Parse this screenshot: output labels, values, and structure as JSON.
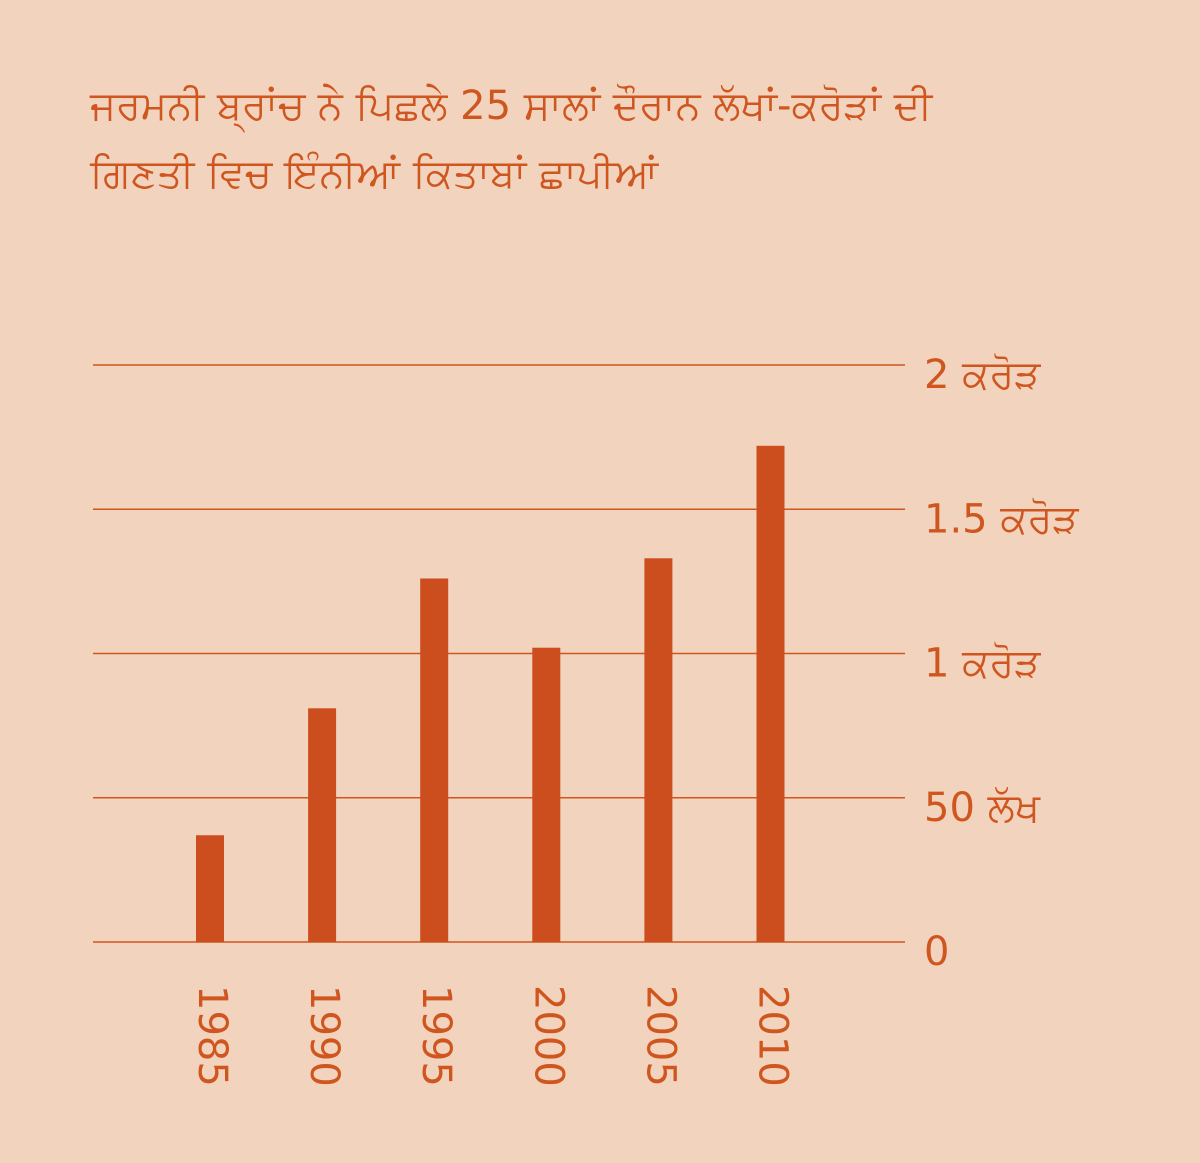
{
  "chart_data": {
    "type": "bar",
    "title": "ਜਰਮਨੀ ਬ੍ਰਾਂਚ ਨੇ ਪਿਛਲੇ 25 ਸਾਲਾਂ ਦੌਰਾਨ ਲੱਖਾਂ-ਕਰੋੜਾਂ ਦੀ ਗਿਣਤੀ ਵਿਚ ਇੰਨੀਆਂ ਕਿਤਾਬਾਂ ਛਾਪੀਆਂ",
    "categories": [
      "1985",
      "1990",
      "1995",
      "2000",
      "2005",
      "2010"
    ],
    "values": [
      3700000,
      8100000,
      12600000,
      10200000,
      13300000,
      17200000
    ],
    "color": "#cc4d1d",
    "ylim": [
      0,
      20000000
    ],
    "yticks": [
      0,
      {
        "value": 5000000,
        "label": "50 ਲੱਖ"
      },
      {
        "value": 10000000,
        "label": "1 ਕਰੋੜ"
      },
      {
        "value": 15000000,
        "label": "1.5 ਕਰੋੜ"
      },
      {
        "value": 20000000,
        "label": "2 ਕਰੋੜ"
      }
    ],
    "grid": true
  }
}
